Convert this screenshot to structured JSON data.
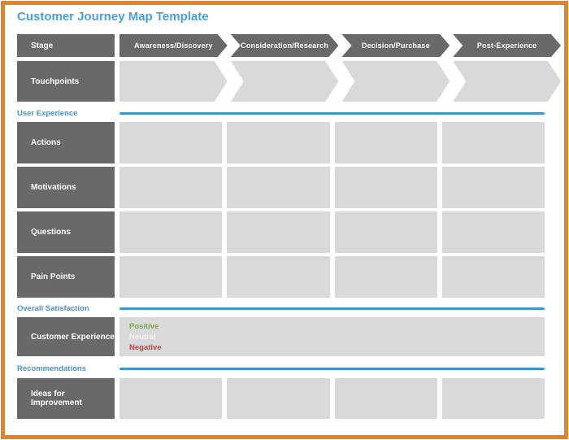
{
  "page": {
    "title": "Customer Journey Map Template"
  },
  "colors": {
    "accent_blue": "#3e96d2",
    "title_blue": "#4b9ed7",
    "header_gray": "#696969",
    "cell_gray": "#d9d9d9",
    "border_orange": "#e8831d",
    "positive_green": "#76b043",
    "neutral_white": "#f2f2f2",
    "negative_red": "#c9403f"
  },
  "stage_row": {
    "label": "Stage",
    "stages": [
      "Awareness/Discovery",
      "Consideration/Research",
      "Decision/Purchase",
      "Post-Experience"
    ]
  },
  "touchpoints_row": {
    "label": "Touchpoints"
  },
  "user_experience": {
    "heading": "User Experience",
    "rows": [
      {
        "label": "Actions"
      },
      {
        "label": "Motivations"
      },
      {
        "label": "Questions"
      },
      {
        "label": "Pain Points"
      }
    ]
  },
  "overall_satisfaction": {
    "heading": "Overall Satisfaction",
    "row_label": "Customer Experience",
    "scale": [
      {
        "label": "Positive",
        "color": "#76b043"
      },
      {
        "label": "Neutral",
        "color": "#f2f2f2"
      },
      {
        "label": "Negative",
        "color": "#c9403f"
      }
    ]
  },
  "recommendations": {
    "heading": "Recommendations",
    "row_label": "Ideas for Improvement"
  }
}
